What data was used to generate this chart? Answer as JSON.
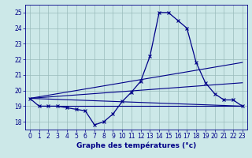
{
  "title": "Graphe des températures (°c)",
  "hours": [
    0,
    1,
    2,
    3,
    4,
    5,
    6,
    7,
    8,
    9,
    10,
    11,
    12,
    13,
    14,
    15,
    16,
    17,
    18,
    19,
    20,
    21,
    22,
    23
  ],
  "main_curve": [
    19.5,
    19.0,
    19.0,
    19.0,
    18.9,
    18.8,
    18.7,
    17.8,
    18.0,
    18.5,
    19.3,
    19.9,
    20.6,
    22.2,
    25.0,
    25.0,
    24.5,
    24.0,
    21.8,
    20.5,
    19.8,
    19.4,
    19.4,
    19.0
  ],
  "straight_lines": [
    {
      "x": [
        0,
        23
      ],
      "y": [
        19.5,
        19.0
      ]
    },
    {
      "x": [
        0,
        23
      ],
      "y": [
        19.5,
        21.8
      ]
    },
    {
      "x": [
        0,
        23
      ],
      "y": [
        19.5,
        20.5
      ]
    },
    {
      "x": [
        3,
        23
      ],
      "y": [
        19.0,
        19.0
      ]
    }
  ],
  "bg_color": "#cce8e8",
  "grid_color": "#99bbbb",
  "line_color": "#000088",
  "xlim": [
    -0.5,
    23.5
  ],
  "ylim": [
    17.5,
    25.5
  ],
  "yticks": [
    18,
    19,
    20,
    21,
    22,
    23,
    24,
    25
  ],
  "xticks": [
    0,
    1,
    2,
    3,
    4,
    5,
    6,
    7,
    8,
    9,
    10,
    11,
    12,
    13,
    14,
    15,
    16,
    17,
    18,
    19,
    20,
    21,
    22,
    23
  ],
  "xlabel_fontsize": 6.5,
  "tick_fontsize": 5.5
}
